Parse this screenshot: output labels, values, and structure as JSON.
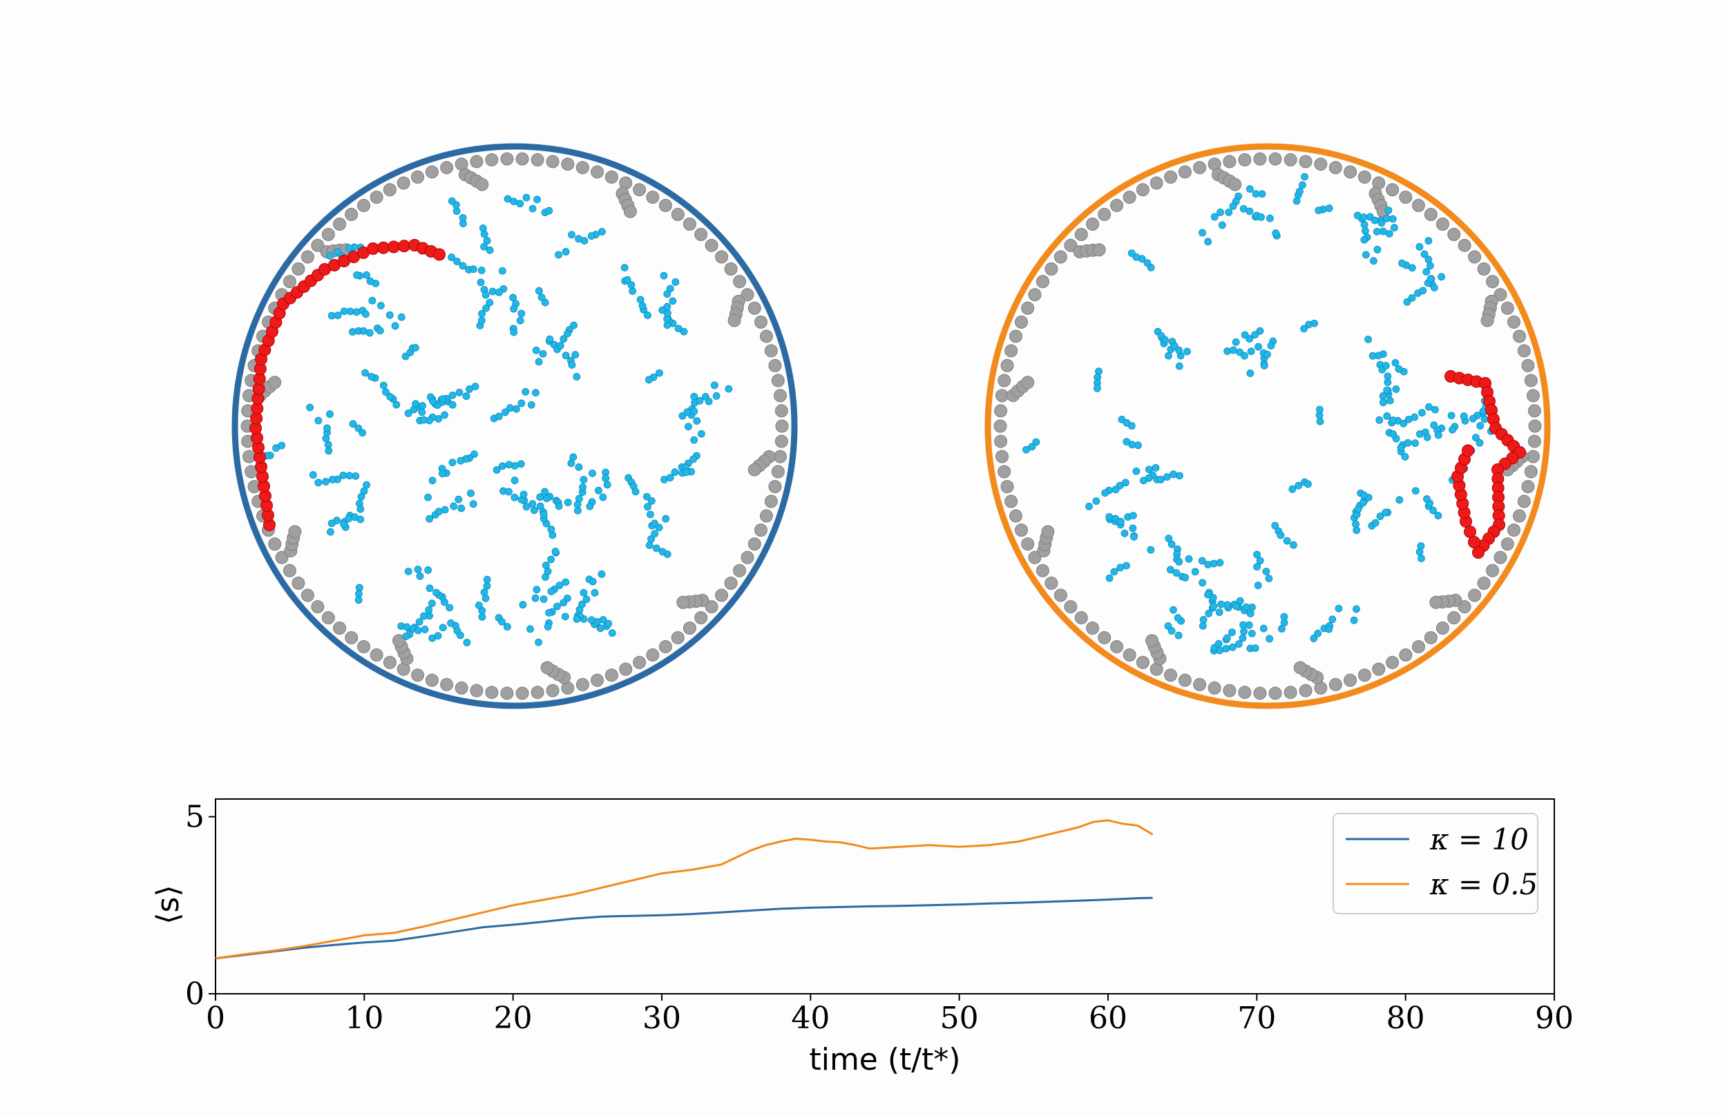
{
  "colors": {
    "background": "#fdfdfd",
    "series_1": "#2c6aa3",
    "series_2": "#f28a1c",
    "free_particle": "#1fb8ea",
    "cluster_particle": "#3aa8d8",
    "wall_particle": "#a0a0a0",
    "tracked_chain": "#ee1a1a"
  },
  "panels": [
    {
      "name": "left-disk",
      "boundary_color": "#2c6aa3"
    },
    {
      "name": "right-disk",
      "boundary_color": "#f28a1c"
    }
  ],
  "chart_data": {
    "type": "line",
    "xlabel": "time (t/t*)",
    "ylabel": "⟨s⟩",
    "xlim": [
      0,
      90
    ],
    "ylim": [
      0,
      5.5
    ],
    "xticks": [
      "0",
      "10",
      "20",
      "30",
      "40",
      "50",
      "60",
      "70",
      "80",
      "90"
    ],
    "yticks": [
      "0",
      "5"
    ],
    "grid": false,
    "legend_position": "top-right",
    "series": [
      {
        "name": "κ = 10",
        "color": "#2c6aa3",
        "x": [
          0,
          2,
          4,
          6,
          8,
          10,
          12,
          14,
          16,
          18,
          20,
          22,
          24,
          26,
          28,
          30,
          32,
          34,
          36,
          38,
          40,
          42,
          44,
          46,
          48,
          50,
          52,
          54,
          56,
          58,
          60,
          62,
          63
        ],
        "y": [
          1.0,
          1.1,
          1.2,
          1.3,
          1.38,
          1.45,
          1.5,
          1.62,
          1.75,
          1.88,
          1.95,
          2.03,
          2.12,
          2.18,
          2.2,
          2.22,
          2.25,
          2.3,
          2.35,
          2.4,
          2.43,
          2.45,
          2.47,
          2.48,
          2.5,
          2.52,
          2.55,
          2.57,
          2.6,
          2.63,
          2.66,
          2.7,
          2.71
        ]
      },
      {
        "name": "κ = 0.5",
        "color": "#f28a1c",
        "x": [
          0,
          2,
          4,
          6,
          8,
          10,
          12,
          14,
          16,
          18,
          20,
          22,
          24,
          26,
          28,
          30,
          32,
          34,
          35,
          36,
          37,
          38,
          39,
          40,
          41,
          42,
          43,
          44,
          46,
          48,
          50,
          52,
          54,
          56,
          58,
          59,
          60,
          61,
          62,
          63
        ],
        "y": [
          1.0,
          1.12,
          1.22,
          1.35,
          1.5,
          1.65,
          1.72,
          1.9,
          2.1,
          2.3,
          2.5,
          2.65,
          2.8,
          3.0,
          3.2,
          3.4,
          3.5,
          3.65,
          3.85,
          4.05,
          4.2,
          4.3,
          4.38,
          4.35,
          4.3,
          4.28,
          4.2,
          4.1,
          4.15,
          4.2,
          4.15,
          4.2,
          4.3,
          4.5,
          4.7,
          4.85,
          4.9,
          4.8,
          4.75,
          4.5
        ]
      }
    ]
  }
}
